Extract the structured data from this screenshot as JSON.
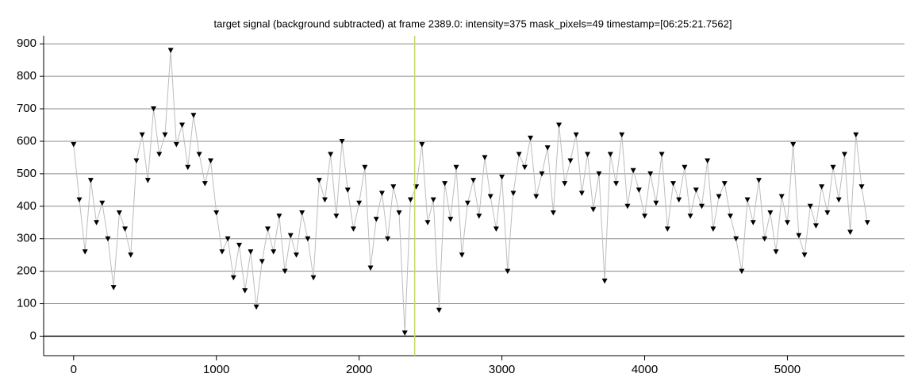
{
  "chart_data": {
    "type": "line",
    "title": "target signal (background subtracted) at frame 2389.0: intensity=375 mask_pixels=49 timestamp=[06:25:21.7562]",
    "x": [
      0,
      40,
      80,
      120,
      160,
      200,
      240,
      280,
      320,
      360,
      400,
      440,
      480,
      520,
      560,
      600,
      640,
      680,
      720,
      760,
      800,
      840,
      880,
      920,
      960,
      1000,
      1040,
      1080,
      1120,
      1160,
      1200,
      1240,
      1280,
      1320,
      1360,
      1400,
      1440,
      1480,
      1520,
      1560,
      1600,
      1640,
      1680,
      1720,
      1760,
      1800,
      1840,
      1880,
      1920,
      1960,
      2000,
      2040,
      2080,
      2120,
      2160,
      2200,
      2240,
      2280,
      2320,
      2360,
      2400,
      2440,
      2480,
      2520,
      2560,
      2600,
      2640,
      2680,
      2720,
      2760,
      2800,
      2840,
      2880,
      2920,
      2960,
      3000,
      3040,
      3080,
      3120,
      3160,
      3200,
      3240,
      3280,
      3320,
      3360,
      3400,
      3440,
      3480,
      3520,
      3560,
      3600,
      3640,
      3680,
      3720,
      3760,
      3800,
      3840,
      3880,
      3920,
      3960,
      4000,
      4040,
      4080,
      4120,
      4160,
      4200,
      4240,
      4280,
      4320,
      4360,
      4400,
      4440,
      4480,
      4520,
      4560,
      4600,
      4640,
      4680,
      4720,
      4760,
      4800,
      4840,
      4880,
      4920,
      4960,
      5000,
      5040,
      5080,
      5120,
      5160,
      5200,
      5240,
      5280,
      5320,
      5360,
      5400,
      5440,
      5480,
      5520,
      5560
    ],
    "series": [
      {
        "color": "#000000",
        "line_color": "#bdbdbd",
        "values": [
          590,
          420,
          260,
          480,
          350,
          410,
          300,
          150,
          380,
          330,
          250,
          540,
          620,
          480,
          700,
          560,
          620,
          880,
          590,
          650,
          520,
          680,
          560,
          470,
          540,
          380,
          260,
          300,
          180,
          280,
          140,
          260,
          90,
          230,
          330,
          260,
          370,
          200,
          310,
          250,
          380,
          300,
          180,
          480,
          420,
          560,
          370,
          600,
          450,
          330,
          410,
          520,
          210,
          360,
          440,
          300,
          460,
          380,
          10,
          420,
          460,
          590,
          350,
          420,
          80,
          470,
          360,
          520,
          250,
          410,
          480,
          370,
          550,
          430,
          330,
          490,
          200,
          440,
          560,
          520,
          610,
          430,
          500,
          580,
          380,
          650,
          470,
          540,
          620,
          440,
          560,
          390,
          500,
          170,
          560,
          470,
          620,
          400,
          510,
          450,
          370,
          500,
          410,
          560,
          330,
          470,
          420,
          520,
          370,
          450,
          400,
          540,
          330,
          430,
          470,
          370,
          300,
          200,
          420,
          350,
          480,
          300,
          380,
          260,
          430,
          350,
          590,
          310,
          250,
          400,
          340,
          460,
          380,
          520,
          420,
          560,
          320,
          620,
          460,
          350
        ]
      }
    ],
    "marker_frame": 2389,
    "marker_color": "#c8d86a",
    "xlim": [
      -210,
      5820
    ],
    "ylim": [
      -60,
      925
    ],
    "xticks": [
      0,
      1000,
      2000,
      3000,
      4000,
      5000
    ],
    "yticks": [
      0,
      100,
      200,
      300,
      400,
      500,
      600,
      700,
      800,
      900
    ],
    "grid": true
  }
}
